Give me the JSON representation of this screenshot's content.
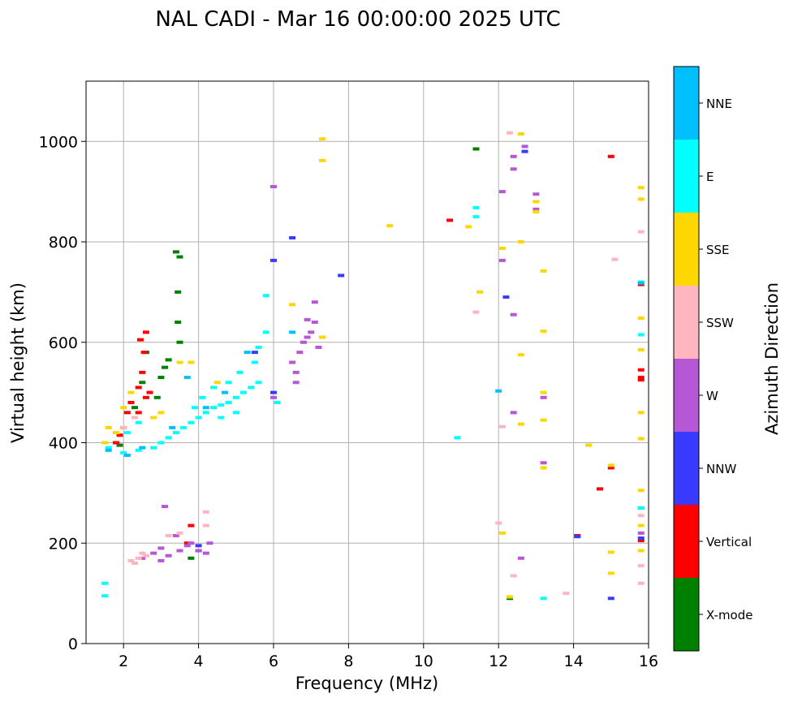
{
  "chart_data": {
    "type": "scatter",
    "title": "NAL CADI - Mar 16 00:00:00 2025 UTC",
    "xlabel": "Frequency (MHz)",
    "ylabel": "Virtual height (km)",
    "xlim": [
      1,
      16
    ],
    "ylim": [
      0,
      1120
    ],
    "xticks": [
      2,
      4,
      6,
      8,
      10,
      12,
      14,
      16
    ],
    "yticks": [
      0,
      200,
      400,
      600,
      800,
      1000
    ],
    "grid": true,
    "colorbar": {
      "label": "Azimuth Direction",
      "categories": [
        {
          "name": "X-mode",
          "color": "#008000"
        },
        {
          "name": "Vertical",
          "color": "#ff0000"
        },
        {
          "name": "NNW",
          "color": "#3a3aff"
        },
        {
          "name": "W",
          "color": "#b657d6"
        },
        {
          "name": "SSW",
          "color": "#ffb6c1"
        },
        {
          "name": "SSE",
          "color": "#ffd700"
        },
        {
          "name": "E",
          "color": "#00ffff"
        },
        {
          "name": "NNE",
          "color": "#00bfff"
        }
      ]
    },
    "series": [
      {
        "name": "X-mode",
        "color": "#008000",
        "points": [
          [
            1.9,
            395
          ],
          [
            2.3,
            470
          ],
          [
            2.5,
            520
          ],
          [
            2.6,
            580
          ],
          [
            2.9,
            490
          ],
          [
            3.0,
            530
          ],
          [
            3.1,
            550
          ],
          [
            3.2,
            565
          ],
          [
            3.45,
            700
          ],
          [
            3.45,
            640
          ],
          [
            3.5,
            770
          ],
          [
            3.4,
            780
          ],
          [
            3.5,
            600
          ],
          [
            3.8,
            170
          ],
          [
            4.0,
            185
          ],
          [
            12.3,
            90
          ],
          [
            11.4,
            985
          ],
          [
            15.8,
            270
          ]
        ]
      },
      {
        "name": "Vertical",
        "color": "#ff0000",
        "points": [
          [
            1.8,
            400
          ],
          [
            1.9,
            415
          ],
          [
            2.0,
            430
          ],
          [
            2.1,
            460
          ],
          [
            2.2,
            480
          ],
          [
            2.4,
            510
          ],
          [
            2.5,
            540
          ],
          [
            2.45,
            605
          ],
          [
            2.6,
            620
          ],
          [
            2.55,
            580
          ],
          [
            2.7,
            500
          ],
          [
            2.4,
            460
          ],
          [
            2.6,
            490
          ],
          [
            3.7,
            200
          ],
          [
            3.8,
            235
          ],
          [
            10.7,
            843
          ],
          [
            15.0,
            970
          ],
          [
            14.1,
            215
          ],
          [
            14.7,
            308
          ],
          [
            15.0,
            350
          ],
          [
            15.8,
            715
          ],
          [
            15.8,
            545
          ],
          [
            15.8,
            530
          ],
          [
            15.8,
            525
          ],
          [
            15.8,
            205
          ]
        ]
      },
      {
        "name": "NNW",
        "color": "#3a3aff",
        "points": [
          [
            4.0,
            195
          ],
          [
            5.5,
            580
          ],
          [
            6.5,
            808
          ],
          [
            6.0,
            763
          ],
          [
            7.8,
            733
          ],
          [
            12.2,
            690
          ],
          [
            12.7,
            980
          ],
          [
            14.1,
            213
          ],
          [
            15.0,
            90
          ],
          [
            15.8,
            210
          ],
          [
            6.0,
            500
          ]
        ]
      },
      {
        "name": "W",
        "color": "#b657d6",
        "points": [
          [
            2.5,
            170
          ],
          [
            2.8,
            180
          ],
          [
            3.0,
            190
          ],
          [
            3.2,
            175
          ],
          [
            3.5,
            185
          ],
          [
            3.7,
            195
          ],
          [
            4.0,
            185
          ],
          [
            4.2,
            180
          ],
          [
            3.0,
            165
          ],
          [
            3.4,
            215
          ],
          [
            4.3,
            200
          ],
          [
            3.8,
            200
          ],
          [
            3.1,
            273
          ],
          [
            6.0,
            490
          ],
          [
            6.5,
            560
          ],
          [
            6.6,
            540
          ],
          [
            6.7,
            580
          ],
          [
            6.8,
            600
          ],
          [
            6.9,
            610
          ],
          [
            7.0,
            620
          ],
          [
            7.1,
            640
          ],
          [
            7.2,
            590
          ],
          [
            6.6,
            520
          ],
          [
            6.9,
            645
          ],
          [
            7.1,
            680
          ],
          [
            6.0,
            910
          ],
          [
            12.7,
            990
          ],
          [
            12.4,
            945
          ],
          [
            12.4,
            970
          ],
          [
            13.0,
            865
          ],
          [
            13.0,
            895
          ],
          [
            12.4,
            655
          ],
          [
            12.1,
            900
          ],
          [
            12.1,
            763
          ],
          [
            13.2,
            490
          ],
          [
            13.2,
            360
          ],
          [
            12.6,
            170
          ],
          [
            12.4,
            460
          ],
          [
            15.8,
            220
          ]
        ]
      },
      {
        "name": "SSW",
        "color": "#ffb6c1",
        "points": [
          [
            2.2,
            165
          ],
          [
            2.4,
            170
          ],
          [
            2.5,
            180
          ],
          [
            2.6,
            175
          ],
          [
            2.3,
            160
          ],
          [
            3.2,
            215
          ],
          [
            3.5,
            220
          ],
          [
            4.2,
            262
          ],
          [
            4.2,
            235
          ],
          [
            2.0,
            430
          ],
          [
            2.3,
            450
          ],
          [
            12.3,
            1017
          ],
          [
            12.0,
            240
          ],
          [
            12.4,
            135
          ],
          [
            11.4,
            660
          ],
          [
            12.1,
            432
          ],
          [
            15.1,
            765
          ],
          [
            15.8,
            820
          ],
          [
            15.8,
            255
          ],
          [
            15.8,
            155
          ],
          [
            15.8,
            120
          ],
          [
            13.8,
            100
          ]
        ]
      },
      {
        "name": "SSE",
        "color": "#ffd700",
        "points": [
          [
            1.5,
            400
          ],
          [
            1.6,
            430
          ],
          [
            1.8,
            420
          ],
          [
            2.0,
            470
          ],
          [
            2.2,
            500
          ],
          [
            2.8,
            450
          ],
          [
            3.0,
            460
          ],
          [
            3.5,
            560
          ],
          [
            3.8,
            560
          ],
          [
            4.5,
            520
          ],
          [
            6.5,
            675
          ],
          [
            7.3,
            1005
          ],
          [
            7.3,
            962
          ],
          [
            7.3,
            610
          ],
          [
            9.1,
            832
          ],
          [
            11.2,
            830
          ],
          [
            11.5,
            700
          ],
          [
            12.1,
            787
          ],
          [
            12.3,
            93
          ],
          [
            12.6,
            1015
          ],
          [
            12.6,
            800
          ],
          [
            13.0,
            880
          ],
          [
            13.0,
            860
          ],
          [
            12.6,
            575
          ],
          [
            12.6,
            437
          ],
          [
            13.2,
            742
          ],
          [
            13.2,
            622
          ],
          [
            13.2,
            500
          ],
          [
            13.2,
            445
          ],
          [
            13.2,
            350
          ],
          [
            12.1,
            220
          ],
          [
            14.4,
            395
          ],
          [
            15.0,
            355
          ],
          [
            15.0,
            182
          ],
          [
            15.0,
            140
          ],
          [
            15.8,
            908
          ],
          [
            15.8,
            885
          ],
          [
            15.8,
            648
          ],
          [
            15.8,
            585
          ],
          [
            15.8,
            460
          ],
          [
            15.8,
            408
          ],
          [
            15.8,
            305
          ],
          [
            15.8,
            235
          ],
          [
            15.8,
            185
          ]
        ]
      },
      {
        "name": "E",
        "color": "#00ffff",
        "points": [
          [
            1.5,
            95
          ],
          [
            1.5,
            120
          ],
          [
            2.0,
            380
          ],
          [
            2.4,
            385
          ],
          [
            2.8,
            390
          ],
          [
            3.0,
            400
          ],
          [
            3.2,
            410
          ],
          [
            3.4,
            420
          ],
          [
            3.6,
            430
          ],
          [
            3.8,
            440
          ],
          [
            4.0,
            450
          ],
          [
            4.2,
            460
          ],
          [
            4.4,
            470
          ],
          [
            4.6,
            475
          ],
          [
            4.8,
            480
          ],
          [
            5.0,
            490
          ],
          [
            5.2,
            500
          ],
          [
            5.4,
            510
          ],
          [
            5.6,
            520
          ],
          [
            3.9,
            470
          ],
          [
            4.1,
            490
          ],
          [
            4.4,
            510
          ],
          [
            4.8,
            520
          ],
          [
            5.1,
            540
          ],
          [
            5.5,
            560
          ],
          [
            5.8,
            620
          ],
          [
            5.8,
            693
          ],
          [
            5.6,
            590
          ],
          [
            4.6,
            450
          ],
          [
            5.0,
            460
          ],
          [
            6.1,
            480
          ],
          [
            1.6,
            390
          ],
          [
            2.1,
            420
          ],
          [
            2.4,
            440
          ],
          [
            10.9,
            410
          ],
          [
            11.4,
            868
          ],
          [
            11.4,
            850
          ],
          [
            13.2,
            90
          ],
          [
            15.8,
            720
          ],
          [
            15.8,
            615
          ],
          [
            15.8,
            270
          ]
        ]
      },
      {
        "name": "NNE",
        "color": "#00bfff",
        "points": [
          [
            1.6,
            385
          ],
          [
            2.1,
            375
          ],
          [
            2.5,
            390
          ],
          [
            3.3,
            430
          ],
          [
            4.2,
            470
          ],
          [
            4.7,
            500
          ],
          [
            5.3,
            580
          ],
          [
            6.5,
            620
          ],
          [
            12.0,
            503
          ],
          [
            3.7,
            530
          ],
          [
            15.8,
            718
          ]
        ]
      }
    ]
  }
}
